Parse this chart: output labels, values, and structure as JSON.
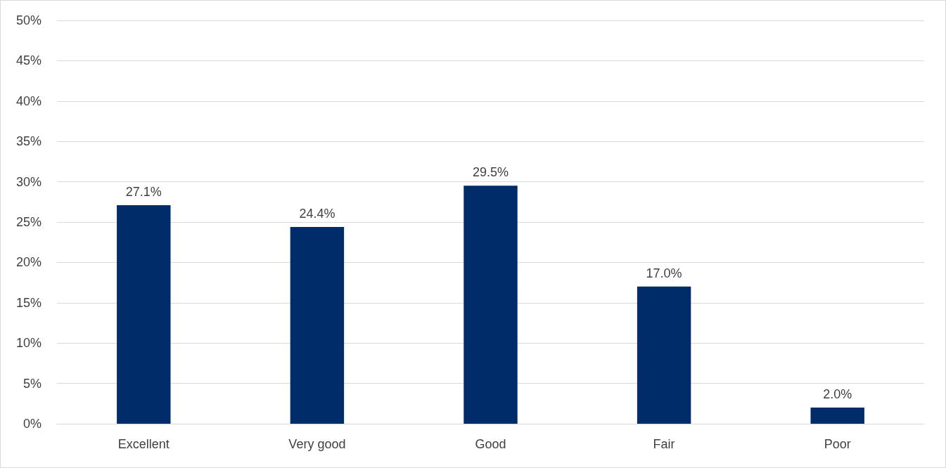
{
  "chart_data": {
    "type": "bar",
    "categories": [
      "Excellent",
      "Very good",
      "Good",
      "Fair",
      "Poor"
    ],
    "values": [
      27.1,
      24.4,
      29.5,
      17.0,
      2.0
    ],
    "color": "#002d6a",
    "value_labels": [
      "27.1%",
      "24.4%",
      "29.5%",
      "17.0%",
      "2.0%"
    ],
    "ylim": [
      0,
      50
    ],
    "yticks": [
      {
        "value": 0,
        "label": "0%"
      },
      {
        "value": 5,
        "label": "5%"
      },
      {
        "value": 10,
        "label": "10%"
      },
      {
        "value": 15,
        "label": "15%"
      },
      {
        "value": 20,
        "label": "20%"
      },
      {
        "value": 25,
        "label": "25%"
      },
      {
        "value": 30,
        "label": "30%"
      },
      {
        "value": 35,
        "label": "35%"
      },
      {
        "value": 40,
        "label": "40%"
      },
      {
        "value": 45,
        "label": "45%"
      },
      {
        "value": 50,
        "label": "50%"
      }
    ],
    "grid": "y"
  }
}
